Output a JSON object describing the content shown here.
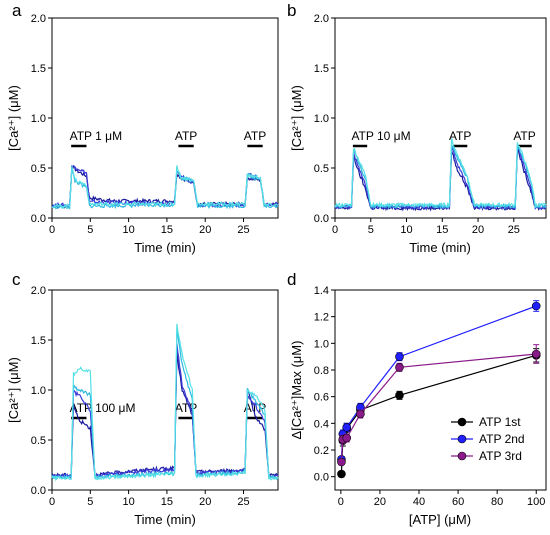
{
  "chart_data": [
    {
      "panel": "a",
      "type": "line",
      "xlabel": "Time (min)",
      "ylabel": "[Ca²⁺] (μM)",
      "xlim": [
        0,
        29.5
      ],
      "ylim": [
        0,
        2.0
      ],
      "xticks": [
        0,
        5,
        10,
        15,
        20,
        25
      ],
      "yticks": [
        0.0,
        0.5,
        1.0,
        1.5,
        2.0
      ],
      "annotations": [
        {
          "text": "ATP 1 μM",
          "bar": [
            2.5,
            4.5
          ]
        },
        {
          "text": "ATP",
          "bar": [
            16.5,
            18.5
          ]
        },
        {
          "text": "ATP",
          "bar": [
            25.5,
            27.5
          ]
        }
      ],
      "series": [
        {
          "color": "#1a1a9e",
          "points": [
            [
              0,
              0.12
            ],
            [
              2.3,
              0.12
            ],
            [
              2.6,
              0.52
            ],
            [
              3.3,
              0.47
            ],
            [
              4.5,
              0.42
            ],
            [
              4.9,
              0.2
            ],
            [
              8,
              0.17
            ],
            [
              16,
              0.17
            ],
            [
              16.3,
              0.45
            ],
            [
              16.8,
              0.4
            ],
            [
              18.5,
              0.36
            ],
            [
              19.0,
              0.14
            ],
            [
              25.2,
              0.14
            ],
            [
              25.5,
              0.4
            ],
            [
              27.2,
              0.38
            ],
            [
              27.7,
              0.14
            ],
            [
              29.5,
              0.14
            ]
          ]
        },
        {
          "color": "#3a3ad8",
          "points": [
            [
              0,
              0.13
            ],
            [
              2.3,
              0.13
            ],
            [
              2.6,
              0.52
            ],
            [
              3.3,
              0.5
            ],
            [
              4.5,
              0.45
            ],
            [
              4.9,
              0.16
            ],
            [
              16,
              0.14
            ],
            [
              16.3,
              0.48
            ],
            [
              16.8,
              0.42
            ],
            [
              18.5,
              0.35
            ],
            [
              19.0,
              0.13
            ],
            [
              25.2,
              0.13
            ],
            [
              25.5,
              0.44
            ],
            [
              27.2,
              0.4
            ],
            [
              27.7,
              0.13
            ],
            [
              29.5,
              0.13
            ]
          ]
        },
        {
          "color": "#2fb8e0",
          "points": [
            [
              0,
              0.11
            ],
            [
              2.3,
              0.11
            ],
            [
              2.6,
              0.5
            ],
            [
              3.0,
              0.37
            ],
            [
              4.5,
              0.3
            ],
            [
              4.9,
              0.12
            ],
            [
              16,
              0.13
            ],
            [
              16.3,
              0.5
            ],
            [
              16.8,
              0.4
            ],
            [
              18.5,
              0.38
            ],
            [
              19.0,
              0.12
            ],
            [
              25.2,
              0.12
            ],
            [
              25.5,
              0.42
            ],
            [
              27.2,
              0.38
            ],
            [
              27.7,
              0.12
            ],
            [
              29.5,
              0.12
            ]
          ]
        },
        {
          "color": "#55e0e6",
          "points": [
            [
              0,
              0.12
            ],
            [
              2.3,
              0.12
            ],
            [
              2.6,
              0.53
            ],
            [
              3.0,
              0.38
            ],
            [
              4.5,
              0.33
            ],
            [
              4.9,
              0.14
            ],
            [
              16,
              0.14
            ],
            [
              16.3,
              0.52
            ],
            [
              16.8,
              0.41
            ],
            [
              18.5,
              0.37
            ],
            [
              19.0,
              0.14
            ],
            [
              25.2,
              0.14
            ],
            [
              25.5,
              0.43
            ],
            [
              27.2,
              0.4
            ],
            [
              27.7,
              0.13
            ],
            [
              29.5,
              0.13
            ]
          ]
        }
      ]
    },
    {
      "panel": "b",
      "type": "line",
      "xlabel": "Time (min)",
      "ylabel": "[Ca²⁺] (μM)",
      "xlim": [
        0,
        29.5
      ],
      "ylim": [
        0,
        2.0
      ],
      "xticks": [
        0,
        5,
        10,
        15,
        20,
        25
      ],
      "yticks": [
        0.0,
        0.5,
        1.0,
        1.5,
        2.0
      ],
      "annotations": [
        {
          "text": "ATP 10 μM",
          "bar": [
            2.5,
            4.5
          ]
        },
        {
          "text": "ATP",
          "bar": [
            16.5,
            18.5
          ]
        },
        {
          "text": "ATP",
          "bar": [
            25.5,
            27.5
          ]
        }
      ],
      "series": [
        {
          "color": "#1a1a9e",
          "points": [
            [
              0,
              0.1
            ],
            [
              2.3,
              0.1
            ],
            [
              2.6,
              0.62
            ],
            [
              3.2,
              0.48
            ],
            [
              4.3,
              0.28
            ],
            [
              5.0,
              0.1
            ],
            [
              16,
              0.1
            ],
            [
              16.3,
              0.68
            ],
            [
              17,
              0.5
            ],
            [
              18.5,
              0.3
            ],
            [
              19.5,
              0.1
            ],
            [
              25.2,
              0.1
            ],
            [
              25.5,
              0.7
            ],
            [
              26.3,
              0.5
            ],
            [
              27.5,
              0.25
            ],
            [
              28,
              0.1
            ],
            [
              29.5,
              0.1
            ]
          ]
        },
        {
          "color": "#3a3ad8",
          "points": [
            [
              0,
              0.11
            ],
            [
              2.3,
              0.11
            ],
            [
              2.6,
              0.66
            ],
            [
              3.2,
              0.52
            ],
            [
              4.3,
              0.32
            ],
            [
              5.0,
              0.11
            ],
            [
              16,
              0.11
            ],
            [
              16.3,
              0.72
            ],
            [
              17,
              0.55
            ],
            [
              18.5,
              0.33
            ],
            [
              19.5,
              0.11
            ],
            [
              25.2,
              0.11
            ],
            [
              25.5,
              0.72
            ],
            [
              26.3,
              0.55
            ],
            [
              27.5,
              0.28
            ],
            [
              28,
              0.11
            ],
            [
              29.5,
              0.11
            ]
          ]
        },
        {
          "color": "#2fb8e0",
          "points": [
            [
              0,
              0.12
            ],
            [
              2.3,
              0.12
            ],
            [
              2.6,
              0.68
            ],
            [
              3.2,
              0.58
            ],
            [
              4.3,
              0.38
            ],
            [
              5.0,
              0.12
            ],
            [
              16,
              0.12
            ],
            [
              16.3,
              0.74
            ],
            [
              17,
              0.62
            ],
            [
              18.5,
              0.4
            ],
            [
              19.5,
              0.12
            ],
            [
              25.2,
              0.12
            ],
            [
              25.5,
              0.74
            ],
            [
              26.3,
              0.6
            ],
            [
              27.5,
              0.33
            ],
            [
              28,
              0.12
            ],
            [
              29.5,
              0.12
            ]
          ]
        },
        {
          "color": "#55e0e6",
          "points": [
            [
              0,
              0.13
            ],
            [
              2.3,
              0.13
            ],
            [
              2.6,
              0.7
            ],
            [
              3.2,
              0.6
            ],
            [
              4.3,
              0.42
            ],
            [
              5.0,
              0.13
            ],
            [
              16,
              0.13
            ],
            [
              16.3,
              0.78
            ],
            [
              17,
              0.65
            ],
            [
              18.5,
              0.42
            ],
            [
              19.5,
              0.13
            ],
            [
              25.2,
              0.13
            ],
            [
              25.5,
              0.75
            ],
            [
              26.3,
              0.62
            ],
            [
              27.5,
              0.35
            ],
            [
              28,
              0.13
            ],
            [
              29.5,
              0.13
            ]
          ]
        }
      ]
    },
    {
      "panel": "c",
      "type": "line",
      "xlabel": "Time (min)",
      "ylabel": "[Ca²⁺] (μM)",
      "xlim": [
        0,
        29.5
      ],
      "ylim": [
        0,
        2.0
      ],
      "xticks": [
        0,
        5,
        10,
        15,
        20,
        25
      ],
      "yticks": [
        0.0,
        0.5,
        1.0,
        1.5,
        2.0
      ],
      "annotations": [
        {
          "text": "ATP 100 μM",
          "bar": [
            2.5,
            4.5
          ]
        },
        {
          "text": "ATP",
          "bar": [
            16.5,
            18.5
          ]
        },
        {
          "text": "ATP",
          "bar": [
            25.5,
            27.5
          ]
        }
      ],
      "series": [
        {
          "color": "#1a1a9e",
          "points": [
            [
              0,
              0.15
            ],
            [
              2.5,
              0.15
            ],
            [
              2.8,
              0.85
            ],
            [
              3.5,
              0.7
            ],
            [
              5.0,
              0.62
            ],
            [
              5.6,
              0.15
            ],
            [
              8,
              0.17
            ],
            [
              12,
              0.2
            ],
            [
              16,
              0.22
            ],
            [
              16.3,
              1.35
            ],
            [
              17,
              1.0
            ],
            [
              18.3,
              0.75
            ],
            [
              18.8,
              0.18
            ],
            [
              25.2,
              0.2
            ],
            [
              25.5,
              1.0
            ],
            [
              26.5,
              0.75
            ],
            [
              27.8,
              0.6
            ],
            [
              28.3,
              0.15
            ],
            [
              29.5,
              0.15
            ]
          ]
        },
        {
          "color": "#3a3ad8",
          "points": [
            [
              0,
              0.14
            ],
            [
              2.5,
              0.14
            ],
            [
              2.8,
              0.98
            ],
            [
              3.5,
              0.95
            ],
            [
              5.0,
              0.8
            ],
            [
              5.6,
              0.14
            ],
            [
              8,
              0.16
            ],
            [
              12,
              0.19
            ],
            [
              16,
              0.2
            ],
            [
              16.3,
              1.45
            ],
            [
              17,
              1.05
            ],
            [
              18.3,
              0.78
            ],
            [
              18.8,
              0.17
            ],
            [
              25.2,
              0.19
            ],
            [
              25.5,
              0.95
            ],
            [
              26.5,
              0.85
            ],
            [
              27.8,
              0.68
            ],
            [
              28.3,
              0.14
            ],
            [
              29.5,
              0.14
            ]
          ]
        },
        {
          "color": "#2fb8e0",
          "points": [
            [
              0,
              0.13
            ],
            [
              2.5,
              0.13
            ],
            [
              2.8,
              1.05
            ],
            [
              3.5,
              1.0
            ],
            [
              5.0,
              0.95
            ],
            [
              5.6,
              0.13
            ],
            [
              16,
              0.17
            ],
            [
              16.3,
              1.6
            ],
            [
              17,
              1.25
            ],
            [
              18.3,
              0.9
            ],
            [
              18.8,
              0.15
            ],
            [
              25.2,
              0.18
            ],
            [
              25.5,
              1.0
            ],
            [
              26.5,
              0.9
            ],
            [
              27.8,
              0.75
            ],
            [
              28.3,
              0.13
            ],
            [
              29.5,
              0.13
            ]
          ]
        },
        {
          "color": "#55e0e6",
          "points": [
            [
              0,
              0.12
            ],
            [
              2.5,
              0.12
            ],
            [
              2.8,
              1.15
            ],
            [
              3.5,
              1.22
            ],
            [
              5.0,
              1.18
            ],
            [
              5.6,
              0.12
            ],
            [
              16,
              0.16
            ],
            [
              16.3,
              1.65
            ],
            [
              17,
              1.35
            ],
            [
              18.3,
              1.0
            ],
            [
              18.8,
              0.14
            ],
            [
              25.2,
              0.17
            ],
            [
              25.5,
              1.0
            ],
            [
              26.5,
              0.95
            ],
            [
              27.8,
              0.8
            ],
            [
              28.3,
              0.12
            ],
            [
              29.5,
              0.12
            ]
          ]
        }
      ]
    },
    {
      "panel": "d",
      "type": "scatter",
      "xlabel": "[ATP] (μM)",
      "ylabel": "Δ[Ca²⁺]Max (μM)",
      "xlim": [
        -3,
        105
      ],
      "ylim": [
        -0.1,
        1.4
      ],
      "xticks": [
        0,
        20,
        40,
        60,
        80,
        100
      ],
      "yticks": [
        0.0,
        0.2,
        0.4,
        0.6,
        0.8,
        1.0,
        1.2,
        1.4
      ],
      "legend_position": "bottom-right",
      "series": [
        {
          "name": "ATP 1st",
          "color": "#000000",
          "x": [
            0.3,
            1,
            3,
            10,
            30,
            100
          ],
          "y": [
            0.02,
            0.27,
            0.36,
            0.5,
            0.61,
            0.91
          ],
          "err": [
            0.02,
            0.04,
            0.04,
            0.04,
            0.03,
            0.05
          ]
        },
        {
          "name": "ATP 2nd",
          "color": "#1f1fff",
          "x": [
            0.3,
            1,
            3,
            10,
            30,
            100
          ],
          "y": [
            0.13,
            0.32,
            0.37,
            0.52,
            0.9,
            1.28
          ],
          "err": [
            0.02,
            0.03,
            0.03,
            0.03,
            0.03,
            0.04
          ]
        },
        {
          "name": "ATP 3rd",
          "color": "#8a1a8a",
          "x": [
            0.3,
            1,
            3,
            10,
            30,
            100
          ],
          "y": [
            0.11,
            0.28,
            0.29,
            0.47,
            0.82,
            0.92
          ],
          "err": [
            0.02,
            0.03,
            0.03,
            0.03,
            0.03,
            0.07
          ]
        }
      ]
    }
  ]
}
